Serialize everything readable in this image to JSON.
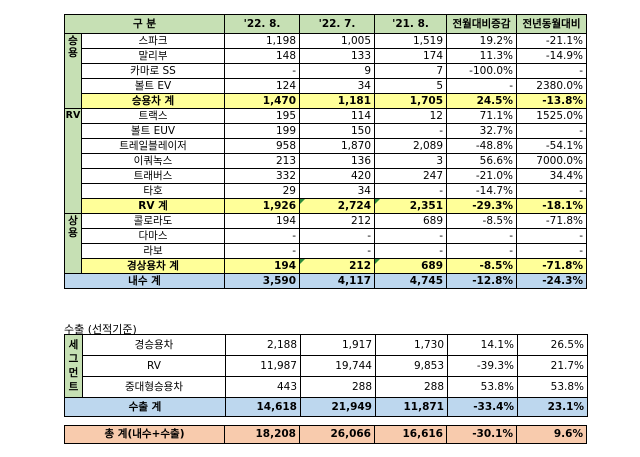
{
  "domestic": {
    "headers": [
      "구  분",
      "'22. 8.",
      "'22. 7.",
      "'21. 8.",
      "전월대비증감",
      "전년동월대비"
    ],
    "groups": [
      {
        "label": "승용",
        "rows": [
          {
            "name": "스파크",
            "v": [
              "1,198",
              "1,005",
              "1,519",
              "19.2%",
              "-21.1%"
            ]
          },
          {
            "name": "말리부",
            "v": [
              "148",
              "133",
              "174",
              "11.3%",
              "-14.9%"
            ]
          },
          {
            "name": "카마로 SS",
            "v": [
              "-",
              "9",
              "7",
              "-100.0%",
              "-"
            ]
          },
          {
            "name": "볼트 EV",
            "v": [
              "124",
              "34",
              "5",
              "-",
              "2380.0%"
            ]
          }
        ],
        "subtotal": {
          "name": "승용차 계",
          "v": [
            "1,470",
            "1,181",
            "1,705",
            "24.5%",
            "-13.8%"
          ]
        }
      },
      {
        "label": "RV",
        "rows": [
          {
            "name": "트랙스",
            "v": [
              "195",
              "114",
              "12",
              "71.1%",
              "1525.0%"
            ]
          },
          {
            "name": "볼트 EUV",
            "v": [
              "199",
              "150",
              "-",
              "32.7%",
              "-"
            ]
          },
          {
            "name": "트레일블레이저",
            "v": [
              "958",
              "1,870",
              "2,089",
              "-48.8%",
              "-54.1%"
            ]
          },
          {
            "name": "이쿼녹스",
            "v": [
              "213",
              "136",
              "3",
              "56.6%",
              "7000.0%"
            ]
          },
          {
            "name": "트래버스",
            "v": [
              "332",
              "420",
              "247",
              "-21.0%",
              "34.4%"
            ]
          },
          {
            "name": "타호",
            "v": [
              "29",
              "34",
              "-",
              "-14.7%",
              "-"
            ]
          }
        ],
        "subtotal": {
          "name": "RV 계",
          "v": [
            "1,926",
            "2,724",
            "2,351",
            "-29.3%",
            "-18.1%"
          ]
        }
      },
      {
        "label": "상용",
        "rows": [
          {
            "name": "콜로라도",
            "v": [
              "194",
              "212",
              "689",
              "-8.5%",
              "-71.8%"
            ]
          },
          {
            "name": "다마스",
            "v": [
              "-",
              "-",
              "-",
              "-",
              "-"
            ]
          },
          {
            "name": "라보",
            "v": [
              "-",
              "-",
              "-",
              "-",
              "-"
            ]
          }
        ],
        "subtotal": {
          "name": "경상용차 계",
          "v": [
            "194",
            "212",
            "689",
            "-8.5%",
            "-71.8%"
          ]
        }
      }
    ],
    "total": {
      "name": "내수 계",
      "v": [
        "3,590",
        "4,117",
        "4,745",
        "-12.8%",
        "-24.3%"
      ]
    }
  },
  "export": {
    "caption": "수출 (선적기준)",
    "group_label": "세그먼트",
    "rows": [
      {
        "name": "경승용차",
        "v": [
          "2,188",
          "1,917",
          "1,730",
          "14.1%",
          "26.5%"
        ]
      },
      {
        "name": "RV",
        "v": [
          "11,987",
          "19,744",
          "9,853",
          "-39.3%",
          "21.7%"
        ]
      },
      {
        "name": "중대형승용차",
        "v": [
          "443",
          "288",
          "288",
          "53.8%",
          "53.8%"
        ]
      }
    ],
    "total": {
      "name": "수출 계",
      "v": [
        "14,618",
        "21,949",
        "11,871",
        "-33.4%",
        "23.1%"
      ]
    }
  },
  "grand_total": {
    "name": "총  계(내수+수출)",
    "v": [
      "18,208",
      "26,066",
      "16,616",
      "-30.1%",
      "9.6%"
    ]
  },
  "colors": {
    "header": "#c6e0b4",
    "subtotal": "#ffff99",
    "domestic_total": "#bdd7ee",
    "grand_total": "#f8cbad",
    "marker": "#2e8b3a"
  }
}
